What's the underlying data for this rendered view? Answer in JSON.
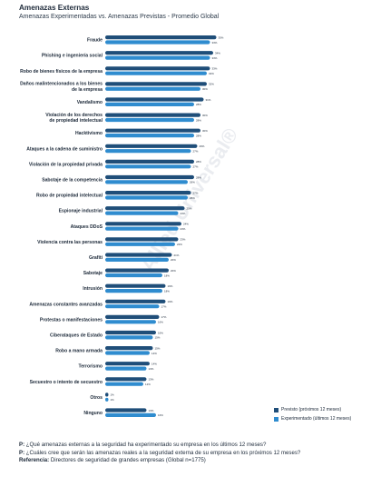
{
  "header": {
    "title": "Amenazas Externas",
    "subtitle": "Amenazas Experimentadas vs. Amenazas Previstas - Promedio Global"
  },
  "watermark": "Allied Universal®",
  "colors": {
    "previsto": "#1f4e79",
    "experimentado": "#2f8ccf"
  },
  "legend": {
    "previsto": "Previsto (próximos 12 meses)",
    "experimentado": "Experimentado (últimos 12 meses)"
  },
  "footer": {
    "q1_prefix": "P:",
    "q1_text": " ¿Qué amenazas externas a la seguridad ha experimentado su empresa en los últimos 12 meses?",
    "q2_prefix": "P:",
    "q2_text": " ¿Cuáles cree que serán las amenazas reales a la seguridad externa de su empresa en los próximos 12 meses?",
    "ref_prefix": "Referencia:",
    "ref_text": " Directores de seguridad de grandes empresas (Global n=1775)"
  },
  "chart_data": {
    "type": "bar",
    "orientation": "horizontal",
    "xlim": [
      0,
      40
    ],
    "categories": [
      [
        "Fraude"
      ],
      [
        "Phishing e ingeniería social"
      ],
      [
        "Robo de bienes físicos de la empresa"
      ],
      [
        "Daños malintencionados a los bienes",
        "de la empresa"
      ],
      [
        "Vandalismo"
      ],
      [
        "Violación de los derechos",
        "de propiedad intelectual"
      ],
      [
        "Hacktivismo"
      ],
      [
        "Ataques a la cadena de suministro"
      ],
      [
        "Violación de la propiedad privada"
      ],
      [
        "Sabotaje de la competencia"
      ],
      [
        "Robo de propiedad intelectual"
      ],
      [
        "Espionaje industrial"
      ],
      [
        "Ataques DDoS"
      ],
      [
        "Violencia contra las personas"
      ],
      [
        "Grafiti"
      ],
      [
        "Sabotaje"
      ],
      [
        "Intrusión"
      ],
      [
        "Amenazas constantes avanzadas"
      ],
      [
        "Protestas o manifestaciones"
      ],
      [
        "Ciberataques de Estado"
      ],
      [
        "Robo a mano armada"
      ],
      [
        "Terrorismo"
      ],
      [
        "Secuestro o intento de secuestro"
      ],
      [
        "Otros"
      ],
      [
        "Ninguno"
      ]
    ],
    "series": [
      {
        "name": "Previsto (próximos 12 meses)",
        "values": [
          35,
          34,
          33,
          32,
          31,
          30,
          30,
          29,
          28,
          28,
          27,
          25,
          24,
          23,
          21,
          20,
          19,
          19,
          17,
          16,
          15,
          14,
          13,
          1,
          13
        ],
        "labels": [
          "35%",
          "34%",
          "33%",
          "32%",
          "31%",
          "30%",
          "30%",
          "29%",
          "28%",
          "28%",
          "27%",
          "25%",
          "24%",
          "23%",
          "21%",
          "20%",
          "19%",
          "19%",
          "17%",
          "16%",
          "15%",
          "14%",
          "13%",
          "1%",
          "13%"
        ]
      },
      {
        "name": "Experimentado (últimos 12 meses)",
        "values": [
          33,
          33,
          32,
          30,
          28,
          28,
          28,
          27,
          27,
          26,
          26,
          23,
          23,
          22,
          20,
          18,
          18,
          17,
          16,
          15,
          14,
          13,
          12,
          1,
          16
        ],
        "labels": [
          "33%",
          "33%",
          "32%",
          "30%",
          "28%",
          "28%",
          "28%",
          "27%",
          "27%",
          "26%",
          "26%",
          "23%",
          "23%",
          "22%",
          "20%",
          "18%",
          "18%",
          "17%",
          "16%",
          "15%",
          "14%",
          "13%",
          "12%",
          "1%",
          "16%"
        ]
      }
    ]
  }
}
